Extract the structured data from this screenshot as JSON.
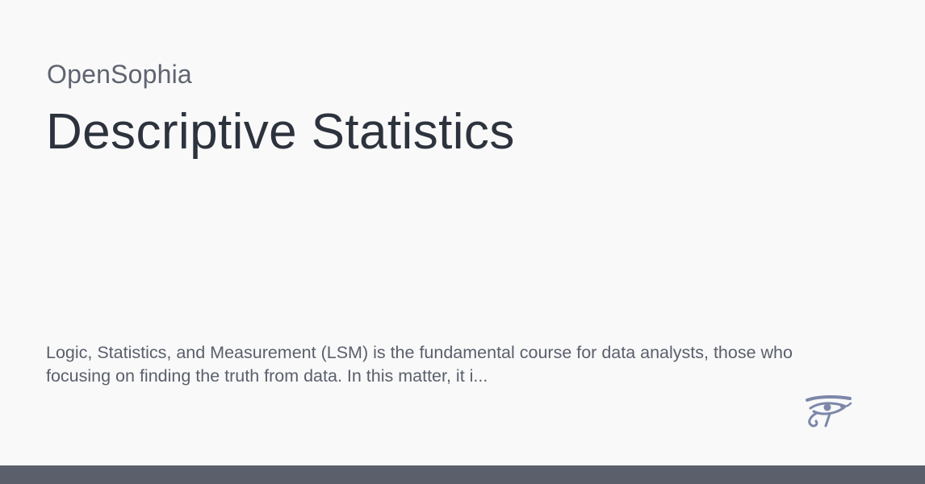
{
  "site": {
    "name": "OpenSophia"
  },
  "page": {
    "title": "Descriptive Statistics",
    "description": "Logic, Statistics, and Measurement (LSM) is the fundamental course for data analysts, those who focusing on finding the truth from data. In this matter, it i..."
  },
  "logo": {
    "icon": "eye-of-horus-icon",
    "color": "#7d87a8"
  },
  "colors": {
    "background": "#f9f9fa",
    "title": "#2d333d",
    "text": "#5a5f6b",
    "bottom_bar": "#5a5f6b"
  }
}
